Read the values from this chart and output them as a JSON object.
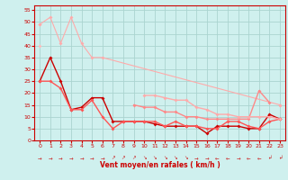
{
  "title": "",
  "xlabel": "Vent moyen/en rafales ( km/h )",
  "ylabel": "",
  "background_color": "#cff0ee",
  "grid_color": "#aad4d0",
  "xlim": [
    -0.5,
    23.5
  ],
  "ylim": [
    0,
    57
  ],
  "yticks": [
    0,
    5,
    10,
    15,
    20,
    25,
    30,
    35,
    40,
    45,
    50,
    55
  ],
  "xticks": [
    0,
    1,
    2,
    3,
    4,
    5,
    6,
    7,
    8,
    9,
    10,
    11,
    12,
    13,
    14,
    15,
    16,
    17,
    18,
    19,
    20,
    21,
    22,
    23
  ],
  "lines": [
    {
      "x": [
        0,
        1,
        2,
        3,
        4,
        5,
        6,
        23
      ],
      "y": [
        49,
        52,
        41,
        52,
        41,
        35,
        35,
        15
      ],
      "color": "#ffaaaa",
      "marker": "D",
      "markersize": 2,
      "linewidth": 0.8,
      "note": "light pink - upper diagonal with peak"
    },
    {
      "x": [
        0,
        1,
        2,
        3,
        4,
        5,
        6,
        7,
        8,
        9,
        10,
        11,
        12,
        13,
        14,
        15,
        16,
        17,
        18,
        19,
        20,
        21,
        22,
        23
      ],
      "y": [
        49,
        null,
        null,
        null,
        null,
        null,
        null,
        null,
        null,
        null,
        null,
        null,
        null,
        null,
        null,
        null,
        null,
        null,
        null,
        null,
        null,
        null,
        null,
        15
      ],
      "color": "#ffaaaa",
      "marker": "D",
      "markersize": 2,
      "linewidth": 0.8,
      "note": "light pink long diagonal"
    },
    {
      "x": [
        0,
        1,
        2,
        3,
        4,
        5,
        6,
        7,
        8,
        9,
        10,
        11,
        12,
        13,
        14,
        15,
        16,
        17,
        18,
        19,
        20,
        21,
        22,
        23
      ],
      "y": [
        40,
        null,
        null,
        null,
        null,
        null,
        null,
        null,
        null,
        null,
        null,
        null,
        null,
        null,
        null,
        null,
        null,
        null,
        null,
        null,
        null,
        null,
        null,
        9
      ],
      "color": "#ffbbbb",
      "marker": "D",
      "markersize": 2,
      "linewidth": 0.8,
      "note": "medium pink diagonal"
    },
    {
      "x": [
        0,
        1,
        2,
        3,
        4,
        5,
        6,
        7,
        8,
        9,
        10,
        11,
        12,
        13,
        14,
        15,
        16,
        17,
        18,
        19,
        20,
        21,
        22,
        23
      ],
      "y": [
        25,
        35,
        25,
        13,
        14,
        18,
        18,
        8,
        8,
        8,
        8,
        7,
        6,
        6,
        6,
        6,
        3,
        6,
        6,
        6,
        5,
        5,
        11,
        9
      ],
      "color": "#cc0000",
      "marker": "D",
      "markersize": 2,
      "linewidth": 1.0,
      "note": "dark red main"
    },
    {
      "x": [
        0,
        1,
        2,
        3,
        4,
        5,
        6,
        7,
        8,
        9,
        10,
        11,
        12,
        13,
        14,
        15,
        16,
        17,
        18,
        19,
        20,
        21,
        22,
        23
      ],
      "y": [
        25,
        25,
        22,
        13,
        13,
        17,
        10,
        5,
        8,
        8,
        8,
        8,
        6,
        8,
        6,
        6,
        5,
        5,
        8,
        8,
        6,
        5,
        8,
        9
      ],
      "color": "#ff5555",
      "marker": "D",
      "markersize": 2,
      "linewidth": 1.0,
      "note": "medium red"
    },
    {
      "x": [
        9,
        10,
        11,
        12,
        13,
        14,
        15,
        16,
        17,
        18,
        19,
        20,
        21,
        22
      ],
      "y": [
        15,
        14,
        14,
        12,
        12,
        10,
        10,
        9,
        9,
        9,
        9,
        9,
        21,
        16
      ],
      "color": "#ff8888",
      "marker": "D",
      "markersize": 2,
      "linewidth": 1.0,
      "note": "lighter red mid"
    },
    {
      "x": [
        10,
        11,
        12,
        13,
        14,
        15,
        16,
        17,
        18,
        19,
        20,
        21,
        22,
        23
      ],
      "y": [
        19,
        19,
        18,
        17,
        17,
        14,
        13,
        11,
        11,
        10,
        10,
        10,
        10,
        9
      ],
      "color": "#ffaaaa",
      "marker": "D",
      "markersize": 2,
      "linewidth": 1.0,
      "note": "lightest red rightish"
    }
  ],
  "xlabel_color": "#cc0000",
  "tick_color": "#cc0000",
  "axis_color": "#cc0000",
  "arrow_symbols": [
    "→",
    "→",
    "→",
    "→",
    "→",
    "→",
    "→",
    "↗",
    "↗",
    "↗",
    "↘",
    "↘",
    "↘",
    "↘",
    "↘",
    "→",
    "→",
    "←",
    "←",
    "→",
    "←",
    "←",
    "↲",
    "↲"
  ]
}
